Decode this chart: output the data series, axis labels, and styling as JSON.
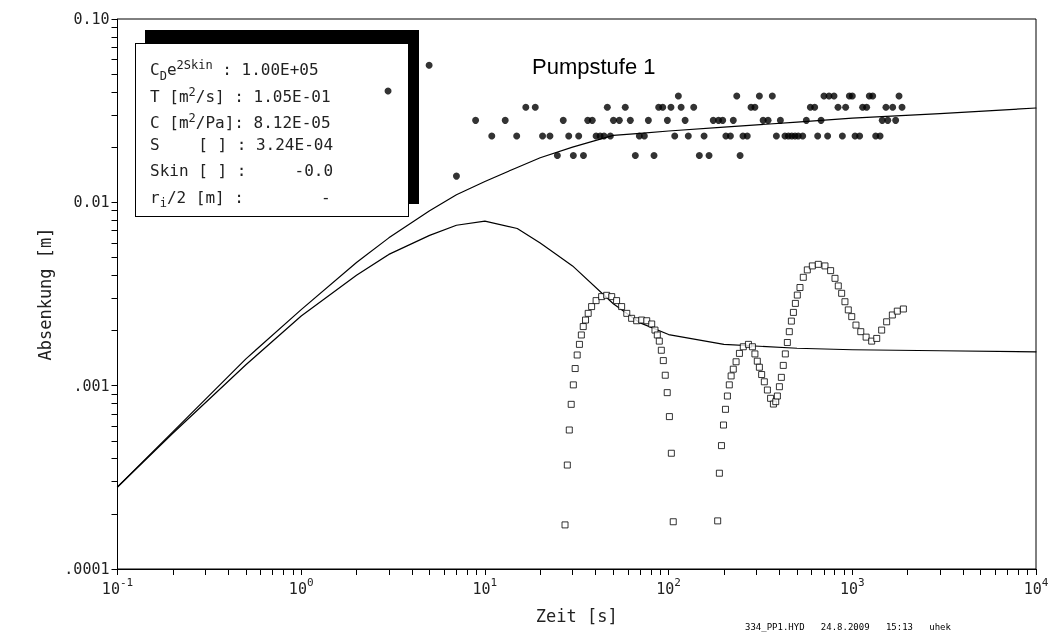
{
  "chart_data": {
    "type": "scatter",
    "title": "Pumpstufe 1",
    "xlabel": "Zeit [s]",
    "ylabel": "Absenkung [m]",
    "log": "xy",
    "grid": false,
    "xlim": [
      0.1,
      10000
    ],
    "ylim": [
      0.0001,
      0.1
    ],
    "xticks": [
      {
        "value": 0.1,
        "label": "10$^{-1}$"
      },
      {
        "value": 0.2,
        "label": null
      },
      {
        "value": 0.3,
        "label": null
      },
      {
        "value": 0.4,
        "label": null
      },
      {
        "value": 0.5,
        "label": null
      },
      {
        "value": 0.6,
        "label": null
      },
      {
        "value": 0.7,
        "label": null
      },
      {
        "value": 0.8,
        "label": null
      },
      {
        "value": 0.9,
        "label": null
      },
      {
        "value": 1,
        "label": "10$^{0}$"
      },
      {
        "value": 2,
        "label": null
      },
      {
        "value": 3,
        "label": null
      },
      {
        "value": 4,
        "label": null
      },
      {
        "value": 5,
        "label": null
      },
      {
        "value": 6,
        "label": null
      },
      {
        "value": 7,
        "label": null
      },
      {
        "value": 8,
        "label": null
      },
      {
        "value": 9,
        "label": null
      },
      {
        "value": 10,
        "label": "10$^{1}$"
      },
      {
        "value": 20,
        "label": null
      },
      {
        "value": 30,
        "label": null
      },
      {
        "value": 40,
        "label": null
      },
      {
        "value": 50,
        "label": null
      },
      {
        "value": 60,
        "label": null
      },
      {
        "value": 70,
        "label": null
      },
      {
        "value": 80,
        "label": null
      },
      {
        "value": 90,
        "label": null
      },
      {
        "value": 100,
        "label": "10$^{2}$"
      },
      {
        "value": 200,
        "label": null
      },
      {
        "value": 300,
        "label": null
      },
      {
        "value": 400,
        "label": null
      },
      {
        "value": 500,
        "label": null
      },
      {
        "value": 600,
        "label": null
      },
      {
        "value": 700,
        "label": null
      },
      {
        "value": 800,
        "label": null
      },
      {
        "value": 900,
        "label": null
      },
      {
        "value": 1000,
        "label": "10$^{3}$"
      },
      {
        "value": 2000,
        "label": null
      },
      {
        "value": 3000,
        "label": null
      },
      {
        "value": 4000,
        "label": null
      },
      {
        "value": 5000,
        "label": null
      },
      {
        "value": 6000,
        "label": null
      },
      {
        "value": 7000,
        "label": null
      },
      {
        "value": 8000,
        "label": null
      },
      {
        "value": 9000,
        "label": null
      },
      {
        "value": 10000,
        "label": "10$^{4}$"
      }
    ],
    "yticks": [
      {
        "value": 0.0001,
        "label": ".0001"
      },
      {
        "value": 0.0002,
        "label": null
      },
      {
        "value": 0.0003,
        "label": null
      },
      {
        "value": 0.0004,
        "label": null
      },
      {
        "value": 0.0005,
        "label": null
      },
      {
        "value": 0.0006,
        "label": null
      },
      {
        "value": 0.0007,
        "label": null
      },
      {
        "value": 0.0008,
        "label": null
      },
      {
        "value": 0.0009,
        "label": null
      },
      {
        "value": 0.001,
        "label": ".001"
      },
      {
        "value": 0.002,
        "label": null
      },
      {
        "value": 0.003,
        "label": null
      },
      {
        "value": 0.004,
        "label": null
      },
      {
        "value": 0.005,
        "label": null
      },
      {
        "value": 0.006,
        "label": null
      },
      {
        "value": 0.007,
        "label": null
      },
      {
        "value": 0.008,
        "label": null
      },
      {
        "value": 0.009,
        "label": null
      },
      {
        "value": 0.01,
        "label": "0.01"
      },
      {
        "value": 0.02,
        "label": null
      },
      {
        "value": 0.03,
        "label": null
      },
      {
        "value": 0.04,
        "label": null
      },
      {
        "value": 0.05,
        "label": null
      },
      {
        "value": 0.06,
        "label": null
      },
      {
        "value": 0.07,
        "label": null
      },
      {
        "value": 0.08,
        "label": null
      },
      {
        "value": 0.09,
        "label": null
      },
      {
        "value": 0.1,
        "label": "0.10"
      }
    ],
    "series": [
      {
        "type": "line",
        "color": "#000000",
        "marker": "none",
        "x": [
          0.1,
          0.2,
          0.5,
          1,
          2,
          3,
          5,
          7,
          10,
          15,
          20,
          30,
          50,
          70,
          100,
          200,
          500,
          1000,
          3000,
          10000
        ],
        "values": [
          0.00028,
          0.00056,
          0.0014,
          0.0026,
          0.0047,
          0.0064,
          0.009,
          0.011,
          0.013,
          0.0155,
          0.0175,
          0.02,
          0.0232,
          0.0238,
          0.0245,
          0.0257,
          0.0274,
          0.0288,
          0.0305,
          0.0327
        ]
      },
      {
        "type": "line",
        "color": "#000000",
        "marker": "none",
        "x": [
          0.1,
          0.2,
          0.5,
          1,
          2,
          3,
          5,
          7,
          10,
          15,
          20,
          30,
          50,
          70,
          100,
          200,
          500,
          1000,
          3000,
          10000
        ],
        "values": [
          0.00028,
          0.00055,
          0.0013,
          0.0024,
          0.004,
          0.0052,
          0.0066,
          0.0075,
          0.0079,
          0.0072,
          0.006,
          0.0045,
          0.0028,
          0.0022,
          0.0019,
          0.00168,
          0.0016,
          0.00157,
          0.00155,
          0.00153
        ]
      },
      {
        "color": "#000000",
        "marker": "circle",
        "x": [
          113,
          235,
          312,
          367,
          701,
          747,
          795,
          964,
          1000,
          1238,
          1291,
          1796,
          16.7,
          18.8,
          46.4,
          58.1,
          88.3,
          92.9,
          103,
          117,
          137,
          281,
          295,
          591,
          624,
          836,
          920,
          1138,
          1197,
          1525,
          1659,
          1865,
          8.9,
          12.9,
          26.7,
          36.3,
          38.4,
          50.1,
          53.9,
          61.9,
          77.6,
          98.5,
          123,
          175,
          187,
          197,
          225,
          327,
          348,
          406,
          562,
          676,
          1456,
          1560,
          1722,
          10.9,
          14.9,
          20.6,
          22.6,
          28.6,
          32.4,
          40.3,
          42.4,
          44.5,
          48.2,
          69.3,
          73.8,
          108,
          128,
          156,
          205,
          217,
          254,
          268,
          386,
          430,
          449,
          468,
          488,
          508,
          537,
          648,
          734,
          883,
          1035,
          1096,
          1341,
          1416,
          24.8,
          30.3,
          34.4,
          65.9,
          83.3,
          147,
          166,
          245,
          7.0,
          4.97,
          2.97
        ],
        "values": [
          0.038,
          0.038,
          0.038,
          0.038,
          0.038,
          0.038,
          0.038,
          0.038,
          0.038,
          0.038,
          0.038,
          0.038,
          0.033,
          0.033,
          0.033,
          0.033,
          0.033,
          0.033,
          0.033,
          0.033,
          0.033,
          0.033,
          0.033,
          0.033,
          0.033,
          0.033,
          0.033,
          0.033,
          0.033,
          0.033,
          0.033,
          0.033,
          0.028,
          0.028,
          0.028,
          0.028,
          0.028,
          0.028,
          0.028,
          0.028,
          0.028,
          0.028,
          0.028,
          0.028,
          0.028,
          0.028,
          0.028,
          0.028,
          0.028,
          0.028,
          0.028,
          0.028,
          0.028,
          0.028,
          0.028,
          0.023,
          0.023,
          0.023,
          0.023,
          0.023,
          0.023,
          0.023,
          0.023,
          0.023,
          0.023,
          0.023,
          0.023,
          0.023,
          0.023,
          0.023,
          0.023,
          0.023,
          0.023,
          0.023,
          0.023,
          0.023,
          0.023,
          0.023,
          0.023,
          0.023,
          0.023,
          0.023,
          0.023,
          0.023,
          0.023,
          0.023,
          0.023,
          0.023,
          0.018,
          0.018,
          0.018,
          0.018,
          0.018,
          0.018,
          0.018,
          0.018,
          0.0139,
          0.056,
          0.0405
        ]
      },
      {
        "color": "#000000",
        "marker": "square",
        "x": [
          27.3,
          28.1,
          28.8,
          29.5,
          30.3,
          31.0,
          31.8,
          32.7,
          33.5,
          34.3,
          35.3,
          36.5,
          38.1,
          40.3,
          43.2,
          46.0,
          49.0,
          52.1,
          55.5,
          59.2,
          62.9,
          67.0,
          71.3,
          76.0,
          80.9,
          84.3,
          86.8,
          89.0,
          91.3,
          93.6,
          95.9,
          98.3,
          101,
          103.5,
          106,
          185,
          189,
          194,
          199,
          204,
          209,
          214,
          219,
          225,
          233,
          243,
          255,
          272,
          286,
          295,
          304,
          312,
          321,
          332,
          345,
          359,
          372,
          383,
          391,
          401,
          411,
          421,
          432,
          443,
          454,
          466,
          478,
          490,
          502,
          519,
          541,
          569,
          606,
          653,
          710,
          762,
          805,
          839,
          875,
          912,
          951,
          993,
          1047,
          1112,
          1189,
          1275,
          1358,
          1445,
          1538,
          1652,
          1758,
          1897
        ],
        "values": [
          0.000174,
          0.000369,
          0.000573,
          0.000791,
          0.00101,
          0.00124,
          0.00147,
          0.00168,
          0.00189,
          0.0021,
          0.00228,
          0.00248,
          0.0027,
          0.00291,
          0.00306,
          0.00311,
          0.00306,
          0.00291,
          0.0027,
          0.00248,
          0.00233,
          0.00226,
          0.00228,
          0.00226,
          0.00217,
          0.00201,
          0.00189,
          0.00175,
          0.00156,
          0.00137,
          0.00114,
          0.000916,
          0.000678,
          0.000428,
          0.000181,
          0.000183,
          0.000333,
          0.000471,
          0.00061,
          0.000743,
          0.000878,
          0.00101,
          0.00113,
          0.00123,
          0.00135,
          0.0015,
          0.00163,
          0.00168,
          0.00163,
          0.00149,
          0.00136,
          0.00126,
          0.00115,
          0.00105,
          0.000947,
          0.000853,
          0.000794,
          0.000818,
          0.000878,
          0.000987,
          0.00111,
          0.00129,
          0.00149,
          0.00172,
          0.00197,
          0.00225,
          0.00251,
          0.00281,
          0.00312,
          0.00343,
          0.0039,
          0.00428,
          0.0045,
          0.00459,
          0.0045,
          0.00424,
          0.00385,
          0.0035,
          0.00319,
          0.00287,
          0.00259,
          0.00238,
          0.00214,
          0.00197,
          0.00184,
          0.00175,
          0.00181,
          0.00201,
          0.00223,
          0.00243,
          0.00255,
          0.00262
        ]
      }
    ],
    "annotations": [
      "C$_{D}$e$^{2Skin}$ : 1.00E+05",
      "T [m$^{2}$/s] : 1.05E-01",
      "C [m$^{2}$/Pa]: 8.12E-05",
      "S    [ ] : 3.24E-04",
      "Skin [ ] :     -0.0",
      "r$_{i}$/2 [m] :        -",
      "334_PP1.HYD   24.8.2009   15:13   uhek"
    ]
  }
}
